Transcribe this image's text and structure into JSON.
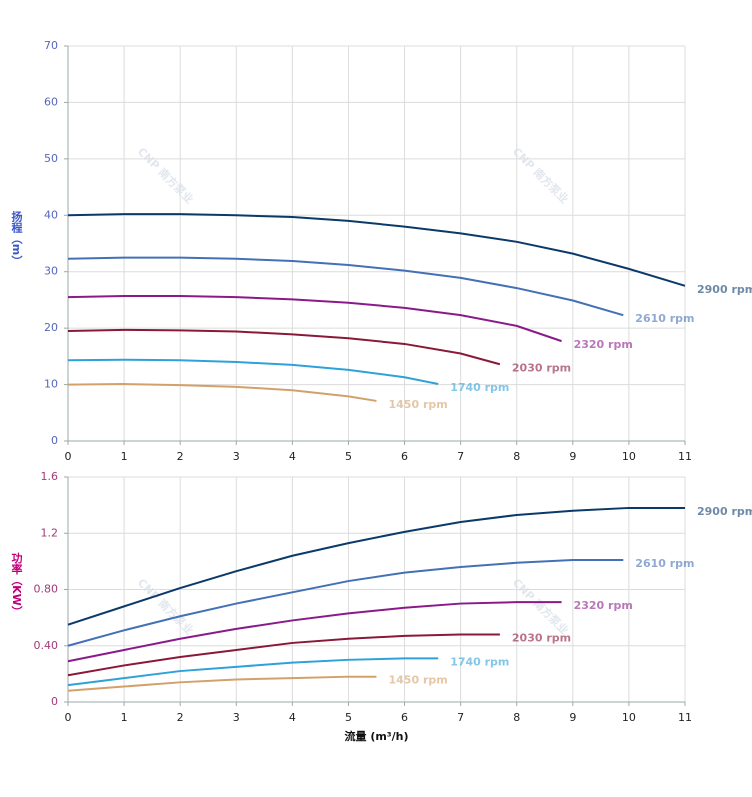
{
  "chart_data": [
    {
      "type": "line",
      "ylabel": "扬程（m）",
      "ylabel_color": "#3a55c8",
      "watermark": "CNP 南方泵业",
      "xlim": [
        0,
        11
      ],
      "xticks": [
        0,
        1,
        2,
        3,
        4,
        5,
        6,
        7,
        8,
        9,
        10,
        11
      ],
      "ylim": [
        0,
        70
      ],
      "yticks": [
        0,
        10,
        20,
        30,
        40,
        50,
        60,
        70
      ],
      "grid": true,
      "series": [
        {
          "name": "2900 rpm",
          "color": "#0b3a6a",
          "x": [
            0,
            1,
            2,
            3,
            4,
            5,
            6,
            7,
            8,
            9,
            10,
            11
          ],
          "values": [
            40.0,
            40.2,
            40.2,
            40.0,
            39.7,
            39.0,
            38.0,
            36.8,
            35.3,
            33.2,
            30.5,
            27.5
          ]
        },
        {
          "name": "2610 rpm",
          "color": "#4470b6",
          "x": [
            0,
            1,
            2,
            3,
            4,
            5,
            6,
            7,
            8,
            9,
            9.9
          ],
          "values": [
            32.3,
            32.5,
            32.5,
            32.3,
            31.9,
            31.2,
            30.2,
            28.9,
            27.1,
            24.9,
            22.3
          ]
        },
        {
          "name": "2320 rpm",
          "color": "#8a1a8a",
          "x": [
            0,
            1,
            2,
            3,
            4,
            5,
            6,
            7,
            8,
            8.8
          ],
          "values": [
            25.5,
            25.7,
            25.7,
            25.5,
            25.1,
            24.5,
            23.6,
            22.3,
            20.4,
            17.7
          ]
        },
        {
          "name": "2030 rpm",
          "color": "#8a1838",
          "x": [
            0,
            1,
            2,
            3,
            4,
            5,
            6,
            7,
            7.7
          ],
          "values": [
            19.5,
            19.7,
            19.6,
            19.4,
            18.9,
            18.2,
            17.2,
            15.5,
            13.6
          ]
        },
        {
          "name": "1740 rpm",
          "color": "#2ea2d8",
          "x": [
            0,
            1,
            2,
            3,
            4,
            5,
            6,
            6.6
          ],
          "values": [
            14.3,
            14.4,
            14.3,
            14.0,
            13.5,
            12.6,
            11.3,
            10.1
          ]
        },
        {
          "name": "1450 rpm",
          "color": "#d4a06a",
          "x": [
            0,
            1,
            2,
            3,
            4,
            5,
            5.5
          ],
          "values": [
            10.0,
            10.1,
            9.9,
            9.6,
            9.0,
            7.9,
            7.1
          ]
        }
      ]
    },
    {
      "type": "line",
      "ylabel": "功率（KW）",
      "ylabel_color": "#c0007a",
      "xlabel": "流量 (m³/h)",
      "watermark": "CNP 南方泵业",
      "xlim": [
        0,
        11
      ],
      "xticks": [
        0,
        1,
        2,
        3,
        4,
        5,
        6,
        7,
        8,
        9,
        10,
        11
      ],
      "ylim": [
        0,
        1.6
      ],
      "yticks": [
        0,
        {
          "value": 0.4,
          "label": "0.40"
        },
        {
          "value": 0.8,
          "label": "0.80"
        },
        1.2,
        1.6
      ],
      "grid": true,
      "series": [
        {
          "name": "2900 rpm",
          "color": "#0b3a6a",
          "x": [
            0,
            1,
            2,
            3,
            4,
            5,
            6,
            7,
            8,
            9,
            10,
            11
          ],
          "values": [
            0.55,
            0.68,
            0.81,
            0.93,
            1.04,
            1.13,
            1.21,
            1.28,
            1.33,
            1.36,
            1.38,
            1.38
          ]
        },
        {
          "name": "2610 rpm",
          "color": "#4470b6",
          "x": [
            0,
            1,
            2,
            3,
            4,
            5,
            6,
            7,
            8,
            9,
            9.9
          ],
          "values": [
            0.4,
            0.51,
            0.61,
            0.7,
            0.78,
            0.86,
            0.92,
            0.96,
            0.99,
            1.01,
            1.01
          ]
        },
        {
          "name": "2320 rpm",
          "color": "#8a1a8a",
          "x": [
            0,
            1,
            2,
            3,
            4,
            5,
            6,
            7,
            8,
            8.8
          ],
          "values": [
            0.29,
            0.37,
            0.45,
            0.52,
            0.58,
            0.63,
            0.67,
            0.7,
            0.71,
            0.71
          ]
        },
        {
          "name": "2030 rpm",
          "color": "#8a1838",
          "x": [
            0,
            1,
            2,
            3,
            4,
            5,
            6,
            7,
            7.7
          ],
          "values": [
            0.19,
            0.26,
            0.32,
            0.37,
            0.42,
            0.45,
            0.47,
            0.48,
            0.48
          ]
        },
        {
          "name": "1740 rpm",
          "color": "#2ea2d8",
          "x": [
            0,
            1,
            2,
            3,
            4,
            5,
            6,
            6.6
          ],
          "values": [
            0.12,
            0.17,
            0.22,
            0.25,
            0.28,
            0.3,
            0.31,
            0.31
          ]
        },
        {
          "name": "1450 rpm",
          "color": "#d4a06a",
          "x": [
            0,
            1,
            2,
            3,
            4,
            5,
            5.5
          ],
          "values": [
            0.08,
            0.11,
            0.14,
            0.16,
            0.17,
            0.18,
            0.18
          ]
        }
      ]
    }
  ]
}
